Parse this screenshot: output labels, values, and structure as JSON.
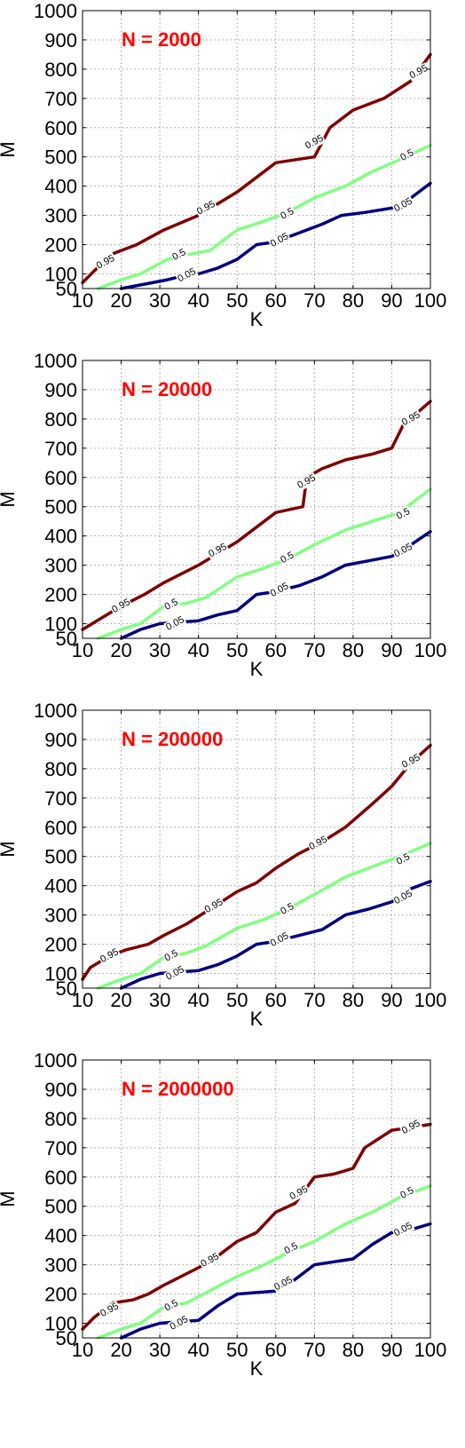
{
  "colors": {
    "p95": "#7f0000",
    "p50": "#80ff80",
    "p05": "#00007f",
    "annotation": "#ff0000",
    "grid": "#9a9a9a",
    "axes": "#000000"
  },
  "chart_data": [
    {
      "type": "line",
      "title": "",
      "annotation": "N = 2000",
      "xlabel": "K",
      "ylabel": "M",
      "xlim": [
        10,
        100
      ],
      "ylim": [
        50,
        1000
      ],
      "xticks": [
        "10",
        "20",
        "30",
        "40",
        "50",
        "60",
        "70",
        "80",
        "90",
        "100"
      ],
      "yticks": [
        "50",
        "100",
        "200",
        "300",
        "400",
        "500",
        "600",
        "700",
        "800",
        "900",
        "1000"
      ],
      "grid": true,
      "series": [
        {
          "name": "0.95",
          "x": [
            10,
            13,
            18,
            24,
            31,
            40,
            50,
            55,
            60,
            70,
            74,
            80,
            88,
            95,
            100
          ],
          "y": [
            70,
            110,
            170,
            200,
            250,
            300,
            380,
            430,
            480,
            500,
            600,
            660,
            700,
            760,
            850
          ],
          "labels": [
            {
              "x": 16,
              "y": 140
            },
            {
              "x": 42,
              "y": 325
            },
            {
              "x": 70,
              "y": 550
            },
            {
              "x": 97,
              "y": 790
            }
          ]
        },
        {
          "name": "0.5",
          "x": [
            14,
            20,
            25,
            32,
            37,
            43,
            50,
            57,
            63,
            70,
            78,
            85,
            92,
            100
          ],
          "y": [
            50,
            80,
            100,
            150,
            165,
            180,
            250,
            280,
            310,
            360,
            400,
            450,
            490,
            540
          ],
          "labels": [
            {
              "x": 35,
              "y": 165
            },
            {
              "x": 63,
              "y": 305
            },
            {
              "x": 94,
              "y": 505
            }
          ]
        },
        {
          "name": "0.05",
          "x": [
            20,
            26,
            32,
            35,
            40,
            45,
            50,
            55,
            60,
            66,
            72,
            77,
            83,
            90,
            95,
            100
          ],
          "y": [
            50,
            65,
            80,
            90,
            100,
            120,
            150,
            200,
            210,
            240,
            270,
            300,
            310,
            325,
            360,
            410
          ],
          "labels": [
            {
              "x": 37,
              "y": 95
            },
            {
              "x": 61,
              "y": 215
            },
            {
              "x": 93,
              "y": 335
            }
          ]
        }
      ]
    },
    {
      "type": "line",
      "title": "",
      "annotation": "N = 20000",
      "xlabel": "K",
      "ylabel": "M",
      "xlim": [
        10,
        100
      ],
      "ylim": [
        50,
        1000
      ],
      "xticks": [
        "10",
        "20",
        "30",
        "40",
        "50",
        "60",
        "70",
        "80",
        "90",
        "100"
      ],
      "yticks": [
        "50",
        "100",
        "200",
        "300",
        "400",
        "500",
        "600",
        "700",
        "800",
        "900",
        "1000"
      ],
      "grid": true,
      "series": [
        {
          "name": "0.95",
          "x": [
            10,
            15,
            20,
            26,
            31,
            40,
            50,
            55,
            60,
            67,
            68,
            72,
            78,
            85,
            90,
            93,
            100
          ],
          "y": [
            80,
            120,
            160,
            200,
            240,
            300,
            380,
            430,
            480,
            500,
            600,
            630,
            660,
            680,
            700,
            780,
            860
          ],
          "labels": [
            {
              "x": 20,
              "y": 160
            },
            {
              "x": 45,
              "y": 350
            },
            {
              "x": 68,
              "y": 585
            },
            {
              "x": 95,
              "y": 800
            }
          ]
        },
        {
          "name": "0.5",
          "x": [
            14,
            20,
            25,
            31,
            37,
            42,
            50,
            57,
            63,
            70,
            78,
            85,
            92,
            100
          ],
          "y": [
            50,
            80,
            100,
            160,
            170,
            190,
            260,
            290,
            320,
            370,
            420,
            450,
            480,
            560
          ],
          "labels": [
            {
              "x": 33,
              "y": 165
            },
            {
              "x": 63,
              "y": 325
            },
            {
              "x": 93,
              "y": 475
            }
          ]
        },
        {
          "name": "0.05",
          "x": [
            20,
            25,
            30,
            35,
            40,
            45,
            50,
            55,
            60,
            66,
            72,
            78,
            84,
            90,
            95,
            100
          ],
          "y": [
            50,
            80,
            100,
            105,
            110,
            130,
            145,
            200,
            210,
            230,
            260,
            300,
            315,
            330,
            370,
            415
          ],
          "labels": [
            {
              "x": 34,
              "y": 100
            },
            {
              "x": 61,
              "y": 215
            },
            {
              "x": 93,
              "y": 350
            }
          ]
        }
      ]
    },
    {
      "type": "line",
      "title": "",
      "annotation": "N = 200000",
      "xlabel": "K",
      "ylabel": "M",
      "xlim": [
        10,
        100
      ],
      "ylim": [
        50,
        1000
      ],
      "xticks": [
        "10",
        "20",
        "30",
        "40",
        "50",
        "60",
        "70",
        "80",
        "90",
        "100"
      ],
      "yticks": [
        "50",
        "100",
        "200",
        "300",
        "400",
        "500",
        "600",
        "700",
        "800",
        "900",
        "1000"
      ],
      "grid": true,
      "series": [
        {
          "name": "0.95",
          "x": [
            10,
            12,
            17,
            21,
            27,
            31,
            37,
            43,
            50,
            55,
            60,
            66,
            72,
            78,
            85,
            90,
            95,
            100
          ],
          "y": [
            80,
            120,
            160,
            180,
            200,
            230,
            270,
            320,
            380,
            410,
            460,
            510,
            550,
            600,
            680,
            740,
            820,
            880
          ],
          "labels": [
            {
              "x": 17,
              "y": 160
            },
            {
              "x": 44,
              "y": 330
            },
            {
              "x": 71,
              "y": 545
            },
            {
              "x": 95,
              "y": 825
            }
          ]
        },
        {
          "name": "0.5",
          "x": [
            14,
            20,
            25,
            31,
            37,
            42,
            50,
            57,
            63,
            70,
            78,
            85,
            92,
            100
          ],
          "y": [
            50,
            80,
            100,
            155,
            170,
            195,
            255,
            285,
            320,
            370,
            430,
            465,
            500,
            545
          ],
          "labels": [
            {
              "x": 33,
              "y": 160
            },
            {
              "x": 63,
              "y": 320
            },
            {
              "x": 93,
              "y": 490
            }
          ]
        },
        {
          "name": "0.05",
          "x": [
            20,
            25,
            30,
            35,
            40,
            45,
            50,
            55,
            60,
            66,
            72,
            78,
            84,
            90,
            95,
            100
          ],
          "y": [
            50,
            80,
            100,
            105,
            110,
            130,
            160,
            200,
            210,
            230,
            250,
            300,
            320,
            345,
            390,
            415
          ],
          "labels": [
            {
              "x": 34,
              "y": 100
            },
            {
              "x": 61,
              "y": 215
            },
            {
              "x": 93,
              "y": 360
            }
          ]
        }
      ]
    },
    {
      "type": "line",
      "title": "",
      "annotation": "N = 2000000",
      "xlabel": "K",
      "ylabel": "M",
      "xlim": [
        10,
        100
      ],
      "ylim": [
        50,
        1000
      ],
      "xticks": [
        "10",
        "20",
        "30",
        "40",
        "50",
        "60",
        "70",
        "80",
        "90",
        "100"
      ],
      "yticks": [
        "50",
        "100",
        "200",
        "300",
        "400",
        "500",
        "600",
        "700",
        "800",
        "900",
        "1000"
      ],
      "grid": true,
      "series": [
        {
          "name": "0.95",
          "x": [
            10,
            13,
            18,
            23,
            27,
            31,
            37,
            43,
            50,
            55,
            60,
            65,
            70,
            75,
            80,
            83,
            90,
            95,
            100
          ],
          "y": [
            80,
            120,
            170,
            180,
            200,
            230,
            270,
            310,
            380,
            410,
            480,
            510,
            600,
            610,
            630,
            700,
            760,
            770,
            780
          ],
          "labels": [
            {
              "x": 17,
              "y": 145
            },
            {
              "x": 43,
              "y": 315
            },
            {
              "x": 66,
              "y": 545
            },
            {
              "x": 95,
              "y": 770
            }
          ]
        },
        {
          "name": "0.5",
          "x": [
            14,
            20,
            25,
            31,
            37,
            42,
            50,
            57,
            63,
            70,
            78,
            85,
            92,
            100
          ],
          "y": [
            50,
            80,
            100,
            155,
            170,
            205,
            260,
            300,
            340,
            380,
            440,
            480,
            530,
            570
          ],
          "labels": [
            {
              "x": 33,
              "y": 160
            },
            {
              "x": 64,
              "y": 355
            },
            {
              "x": 94,
              "y": 545
            }
          ]
        },
        {
          "name": "0.05",
          "x": [
            20,
            25,
            30,
            35,
            40,
            45,
            50,
            55,
            60,
            63,
            70,
            75,
            80,
            85,
            90,
            95,
            100
          ],
          "y": [
            50,
            80,
            100,
            105,
            110,
            160,
            200,
            205,
            210,
            230,
            300,
            310,
            320,
            370,
            410,
            420,
            440
          ],
          "labels": [
            {
              "x": 35,
              "y": 100
            },
            {
              "x": 62,
              "y": 235
            },
            {
              "x": 93,
              "y": 420
            }
          ]
        }
      ]
    }
  ]
}
